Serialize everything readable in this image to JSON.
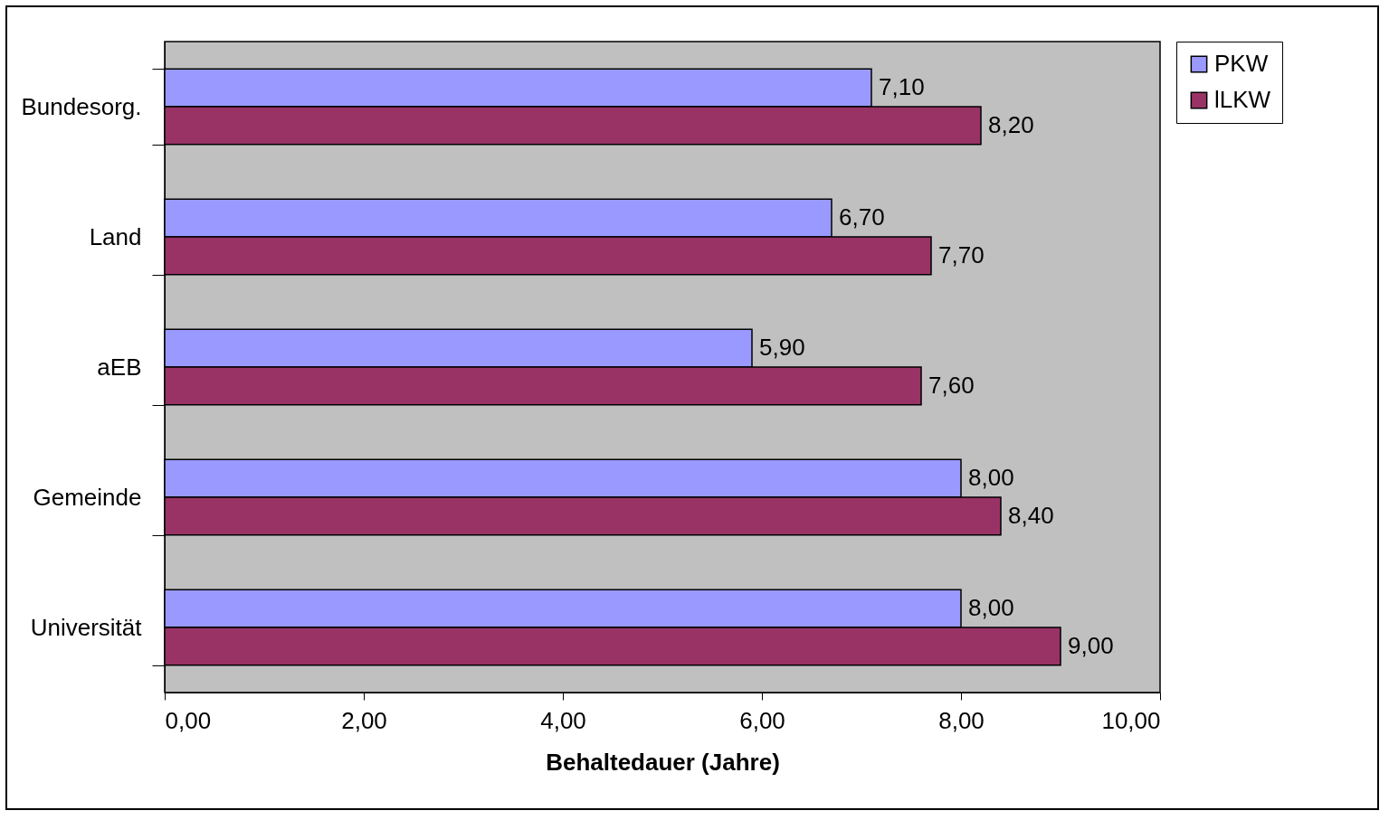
{
  "chart_data": {
    "type": "bar",
    "orientation": "horizontal",
    "xlabel": "Behaltedauer (Jahre)",
    "categories": [
      "Bundesorg.",
      "Land",
      "aEB",
      "Gemeinde",
      "Universität"
    ],
    "series": [
      {
        "name": "PKW",
        "color": "#9999ff",
        "values": [
          7.1,
          6.7,
          5.9,
          8.0,
          8.0
        ],
        "value_labels": [
          "7,10",
          "6,70",
          "5,90",
          "8,00",
          "8,00"
        ]
      },
      {
        "name": "lLKW",
        "color": "#993366",
        "values": [
          8.2,
          7.7,
          7.6,
          8.4,
          9.0
        ],
        "value_labels": [
          "8,20",
          "7,70",
          "7,60",
          "8,40",
          "9,00"
        ]
      }
    ],
    "xlim": [
      0,
      10
    ],
    "xticks": [
      {
        "value": 0,
        "label": "0,00"
      },
      {
        "value": 2,
        "label": "2,00"
      },
      {
        "value": 4,
        "label": "4,00"
      },
      {
        "value": 6,
        "label": "6,00"
      },
      {
        "value": 8,
        "label": "8,00"
      },
      {
        "value": 10,
        "label": "10,00"
      }
    ],
    "legend": "right"
  }
}
